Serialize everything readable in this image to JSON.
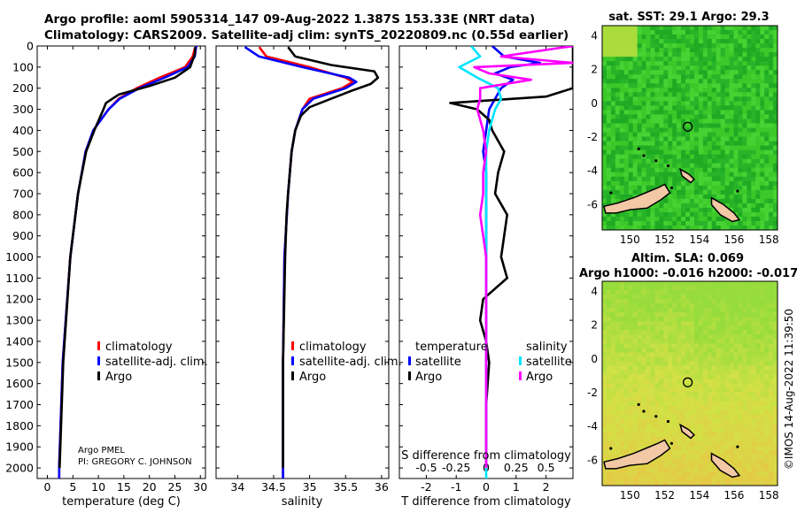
{
  "header": {
    "title_line1": "Argo profile: aoml 5905314_147 09-Aug-2022 1.387S 153.33E (NRT data)",
    "title_line2": "Climatology: CARS2009. Satellite-adj clim: synTS_20220809.nc (0.55d earlier)"
  },
  "colors": {
    "climatology": "#ff0000",
    "satellite": "#0000ff",
    "argo": "#000000",
    "sal_sat": "#00e5ff",
    "sal_argo": "#ff00ff"
  },
  "chart_data": [
    {
      "type": "line",
      "id": "temperature",
      "xlabel": "temperature (deg C)",
      "ylabel": "",
      "xlim": [
        -2,
        31
      ],
      "ylim": [
        2050,
        0
      ],
      "xticks": [
        0,
        5,
        10,
        15,
        20,
        25,
        30
      ],
      "yticks": [
        0,
        100,
        200,
        300,
        400,
        500,
        600,
        700,
        800,
        900,
        1000,
        1100,
        1200,
        1300,
        1400,
        1500,
        1600,
        1700,
        1800,
        1900,
        2000
      ],
      "legend": [
        "climatology",
        "satellite-adj. clim.",
        "Argo"
      ],
      "credit": [
        "Argo PMEL",
        "PI: GREGORY C. JOHNSON"
      ],
      "series": [
        {
          "name": "climatology",
          "color": "#ff0000",
          "depth": [
            5,
            50,
            100,
            150,
            200,
            250,
            300,
            400,
            500,
            700,
            1000,
            1500,
            2000,
            2050
          ],
          "values": [
            29.0,
            28.5,
            27.0,
            22.0,
            17.5,
            14.0,
            12.0,
            9.0,
            7.5,
            6.0,
            4.5,
            3.0,
            2.3,
            2.3
          ]
        },
        {
          "name": "satellite-adj. clim.",
          "color": "#0000ff",
          "depth": [
            0,
            50,
            100,
            150,
            200,
            250,
            300,
            400,
            500,
            700,
            1000,
            1500,
            2000,
            2050
          ],
          "values": [
            29.2,
            28.9,
            27.5,
            23.0,
            18.0,
            14.2,
            12.0,
            9.0,
            7.5,
            6.0,
            4.5,
            3.0,
            2.3,
            2.3
          ]
        },
        {
          "name": "Argo",
          "color": "#000000",
          "depth": [
            5,
            40,
            100,
            150,
            190,
            230,
            270,
            300,
            400,
            500,
            700,
            1000,
            1500,
            2000
          ],
          "values": [
            29.0,
            28.9,
            28.0,
            25.0,
            20.0,
            14.0,
            11.5,
            11.0,
            9.2,
            7.6,
            6.0,
            4.5,
            3.1,
            2.4
          ]
        }
      ]
    },
    {
      "type": "line",
      "id": "salinity",
      "xlabel": "salinity",
      "xlim": [
        33.7,
        36.1
      ],
      "ylim": [
        2050,
        0
      ],
      "xticks": [
        34,
        34.5,
        35,
        35.5,
        36
      ],
      "xticklabels": [
        "34",
        "34.5",
        "35",
        "35.5",
        "36"
      ],
      "legend": [
        "climatology",
        "satellite-adj. clim.",
        "Argo"
      ],
      "series": [
        {
          "name": "climatology",
          "color": "#ff0000",
          "depth": [
            5,
            50,
            100,
            150,
            170,
            200,
            250,
            300,
            400,
            500,
            700,
            1000,
            1500,
            2000,
            2050
          ],
          "values": [
            34.3,
            34.4,
            35.0,
            35.5,
            35.6,
            35.45,
            35.0,
            34.9,
            34.8,
            34.75,
            34.7,
            34.65,
            34.63,
            34.63,
            34.63
          ]
        },
        {
          "name": "satellite-adj. clim.",
          "color": "#0000ff",
          "depth": [
            5,
            50,
            100,
            150,
            170,
            200,
            250,
            300,
            400,
            500,
            700,
            1000,
            1500,
            2000,
            2050
          ],
          "values": [
            34.1,
            34.3,
            34.9,
            35.55,
            35.65,
            35.5,
            35.05,
            34.9,
            34.8,
            34.75,
            34.7,
            34.65,
            34.63,
            34.63,
            34.63
          ]
        },
        {
          "name": "Argo",
          "color": "#000000",
          "depth": [
            5,
            50,
            90,
            120,
            150,
            180,
            210,
            250,
            290,
            330,
            400,
            500,
            700,
            800,
            1000,
            1500,
            2000
          ],
          "values": [
            34.7,
            34.8,
            35.3,
            35.9,
            35.95,
            35.85,
            35.6,
            35.3,
            35.0,
            34.88,
            34.8,
            34.75,
            34.7,
            34.68,
            34.66,
            34.63,
            34.63
          ]
        }
      ]
    },
    {
      "type": "line",
      "id": "difference",
      "xlabel": "T difference from climatology",
      "s_axis_label": "S difference from climatology",
      "xlim": [
        -2.9,
        2.9
      ],
      "ylim": [
        2050,
        0
      ],
      "xticks": [
        -2,
        -1,
        0,
        1,
        2
      ],
      "s_ticklabels": [
        "-0.5",
        "-0.25",
        "0",
        "0.25",
        "0.5"
      ],
      "legend_titles": {
        "temperature": "temperature",
        "salinity": "salinity"
      },
      "legend_temperature": [
        "satellite",
        "Argo"
      ],
      "legend_salinity": [
        "satellite",
        "Argo"
      ],
      "series": [
        {
          "name": "temperature satellite",
          "color": "#0000ff",
          "depth": [
            0,
            50,
            80,
            100,
            130,
            160,
            200,
            250,
            300,
            400,
            500,
            600,
            700,
            800,
            1000,
            1500,
            2000
          ],
          "values": [
            0.2,
            0.6,
            1.8,
            0.8,
            0.3,
            0.9,
            0.5,
            0.3,
            0.1,
            0.0,
            -0.1,
            0.0,
            0.0,
            0.0,
            0.0,
            0.0,
            0.0
          ]
        },
        {
          "name": "temperature Argo",
          "color": "#000000",
          "depth": [
            0,
            40,
            80,
            100,
            130,
            160,
            200,
            240,
            270,
            300,
            350,
            400,
            500,
            600,
            700,
            800,
            900,
            1000,
            1100,
            1200,
            1300,
            1400,
            1500,
            1700,
            2000
          ],
          "values": [
            2.9,
            2.9,
            2.9,
            2.9,
            2.9,
            2.9,
            2.9,
            2.0,
            -1.2,
            -0.3,
            0.1,
            0.2,
            0.6,
            0.4,
            0.3,
            0.7,
            0.6,
            0.5,
            0.7,
            -0.1,
            -0.2,
            0.0,
            0.1,
            0.0,
            0.0
          ]
        },
        {
          "name": "salinity satellite",
          "color": "#00e5ff",
          "depth": [
            0,
            50,
            100,
            150,
            200,
            250,
            300,
            400,
            500,
            700,
            1000,
            1500,
            2000,
            2050
          ],
          "values": [
            -0.5,
            -0.2,
            -0.9,
            -0.3,
            0.4,
            0.5,
            0.3,
            0.1,
            0.0,
            0.0,
            0.0,
            0.0,
            0.0,
            0.0
          ]
        },
        {
          "name": "salinity Argo",
          "color": "#ff00ff",
          "depth": [
            0,
            50,
            80,
            100,
            130,
            160,
            200,
            250,
            300,
            400,
            500,
            600,
            700,
            800,
            1000,
            1500,
            2000
          ],
          "values": [
            2.9,
            0.5,
            2.9,
            -0.4,
            0.1,
            1.5,
            -0.2,
            -0.2,
            -0.3,
            -0.1,
            0.0,
            -0.1,
            -0.1,
            -0.2,
            0.0,
            0.0,
            0.0
          ]
        }
      ]
    }
  ],
  "maps": {
    "sst": {
      "title": "sat. SST: 29.1 Argo: 29.3",
      "xticks": [
        "150",
        "152",
        "154",
        "156",
        "158"
      ],
      "yticks": [
        "4",
        "2",
        "0",
        "-2",
        "-4",
        "-6"
      ]
    },
    "sla": {
      "title1": "Altim. SLA: 0.069",
      "title2": "Argo h1000: -0.016 h2000: -0.017",
      "xticks": [
        "150",
        "152",
        "154",
        "156",
        "158"
      ],
      "yticks": [
        "4",
        "2",
        "0",
        "-2",
        "-4",
        "-6"
      ]
    },
    "xlim": [
      148.4,
      158.5
    ],
    "ylim": [
      -7.5,
      4.6
    ],
    "argo_position": [
      153.33,
      -1.387
    ]
  },
  "footer": {
    "imos": "©IMOS 14-Aug-2022 11:39:50"
  }
}
